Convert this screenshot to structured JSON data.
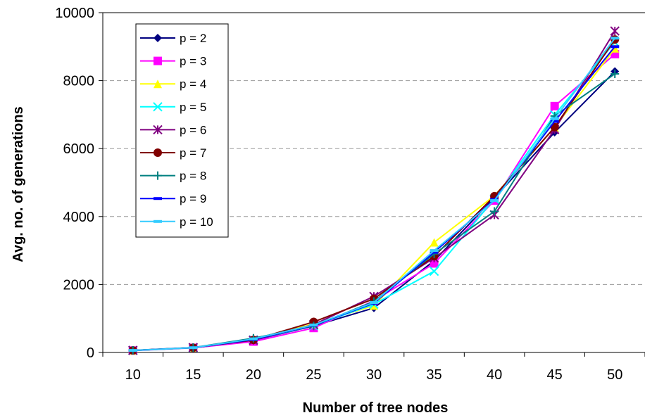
{
  "chart_data": {
    "type": "line",
    "title": "",
    "xlabel": "Number of tree nodes",
    "ylabel": "Avg. no. of generations",
    "categories": [
      "10",
      "15",
      "20",
      "25",
      "30",
      "35",
      "40",
      "45",
      "50"
    ],
    "ylim": [
      0,
      10000
    ],
    "yticks": [
      "0",
      "2000",
      "4000",
      "6000",
      "8000",
      "10000"
    ],
    "grid": "horizontal dashed",
    "legend_position": "top-left",
    "series": [
      {
        "name": "p = 2",
        "color": "#000080",
        "marker": "diamond",
        "values": [
          60,
          140,
          360,
          780,
          1310,
          2700,
          4550,
          6480,
          8270
        ]
      },
      {
        "name": "p = 3",
        "color": "#FF00FF",
        "marker": "square",
        "values": [
          55,
          135,
          320,
          720,
          1520,
          2620,
          4470,
          7250,
          8780
        ]
      },
      {
        "name": "p = 4",
        "color": "#FFFF00",
        "marker": "triangle",
        "values": [
          60,
          140,
          390,
          840,
          1380,
          3240,
          4610,
          6620,
          8950
        ]
      },
      {
        "name": "p = 5",
        "color": "#00FFFF",
        "marker": "x",
        "values": [
          58,
          138,
          370,
          790,
          1420,
          2390,
          4520,
          6990,
          9130
        ]
      },
      {
        "name": "p = 6",
        "color": "#800080",
        "marker": "asterisk",
        "values": [
          62,
          145,
          360,
          820,
          1650,
          2780,
          4050,
          6560,
          9460
        ]
      },
      {
        "name": "p = 7",
        "color": "#800000",
        "marker": "circle",
        "values": [
          60,
          140,
          370,
          900,
          1580,
          2830,
          4600,
          6630,
          9210
        ]
      },
      {
        "name": "p = 8",
        "color": "#008080",
        "marker": "plus",
        "values": [
          62,
          143,
          420,
          780,
          1500,
          2900,
          4150,
          6960,
          8200
        ]
      },
      {
        "name": "p = 9",
        "color": "#0000FF",
        "marker": "dash",
        "values": [
          60,
          140,
          380,
          800,
          1450,
          2950,
          4500,
          6800,
          9000
        ]
      },
      {
        "name": "p = 10",
        "color": "#33CCFF",
        "marker": "dash",
        "values": [
          60,
          140,
          400,
          810,
          1470,
          3000,
          4470,
          6880,
          9250
        ]
      }
    ]
  }
}
